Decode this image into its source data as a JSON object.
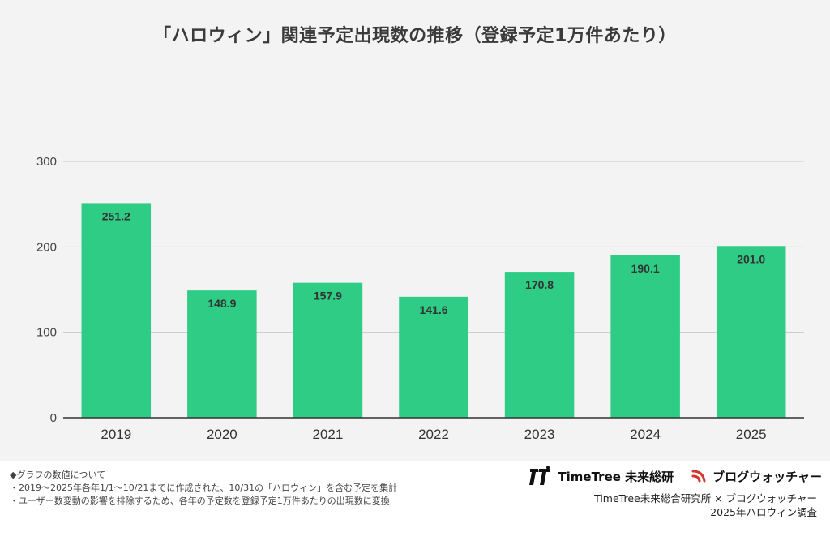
{
  "chart_data": {
    "type": "bar",
    "title": "「ハロウィン」関連予定出現数の推移（登録予定1万件あたり）",
    "categories": [
      "2019",
      "2020",
      "2021",
      "2022",
      "2023",
      "2024",
      "2025"
    ],
    "values": [
      251.2,
      148.9,
      157.9,
      141.6,
      170.8,
      190.1,
      201.0
    ],
    "data_labels": [
      "251.2",
      "148.9",
      "157.9",
      "141.6",
      "170.8",
      "190.1",
      "201.0"
    ],
    "ylim": [
      0,
      300
    ],
    "yticks": [
      0,
      100,
      200,
      300
    ],
    "grid": true,
    "legend": "none",
    "bar_color": "#2ecc85",
    "xlabel": "",
    "ylabel": ""
  },
  "notes": [
    "◆グラフの数値について",
    "・2019〜2025年各年1/1〜10/21までに作成された、10/31の「ハロウィン」を含む予定を集計",
    "・ユーザー数変動の影響を排除するため、各年の予定数を登録予定1万件あたりの出現数に変換"
  ],
  "brand": {
    "logo_timetree": "TimeTree 未来総研",
    "logo_blogwatcher": "ブログウォッチャー",
    "credit_line1": "TimeTree未来総合研究所 × ブログウォッチャー",
    "credit_line2": "2025年ハロウィン調査"
  }
}
